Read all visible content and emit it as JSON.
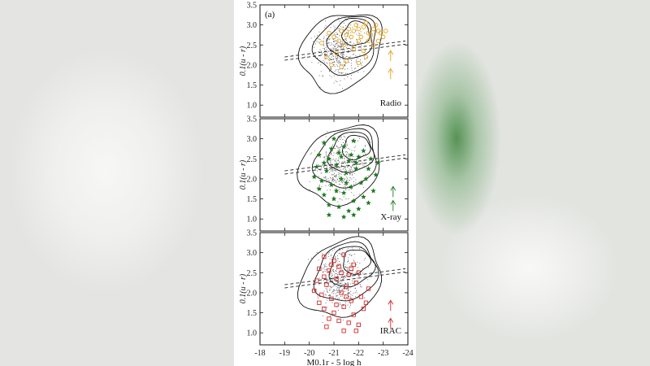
{
  "figure_label": "(a)",
  "colors": {
    "radio": "#e8a317",
    "xray": "#1e7b1e",
    "irac": "#d42a2a",
    "contour": "#111111",
    "background_points": "#555555"
  },
  "chart_data": [
    {
      "type": "scatter",
      "panel_label": "Radio",
      "ylabel": "0.1(u - r)",
      "xlim": [
        -18,
        -24
      ],
      "ylim": [
        0.7,
        3.5
      ],
      "yticks": [
        1.0,
        1.5,
        2.0,
        2.5,
        3.0,
        3.5
      ],
      "marker": "circle-open",
      "series": [
        {
          "name": "Radio",
          "color": "#e8a317",
          "marker": "circle-open",
          "points": [
            [
              -21.8,
              2.85
            ],
            [
              -22.0,
              2.9
            ],
            [
              -22.2,
              2.95
            ],
            [
              -22.4,
              2.8
            ],
            [
              -22.6,
              2.9
            ],
            [
              -22.8,
              2.85
            ],
            [
              -21.5,
              2.75
            ],
            [
              -21.7,
              2.7
            ],
            [
              -22.1,
              2.7
            ],
            [
              -22.5,
              2.75
            ],
            [
              -22.9,
              2.8
            ],
            [
              -23.0,
              2.7
            ],
            [
              -21.9,
              3.0
            ],
            [
              -22.3,
              3.05
            ],
            [
              -22.7,
              3.0
            ],
            [
              -21.6,
              2.9
            ],
            [
              -21.3,
              2.85
            ],
            [
              -22.0,
              2.6
            ],
            [
              -22.4,
              2.6
            ],
            [
              -22.8,
              2.6
            ],
            [
              -21.2,
              2.6
            ],
            [
              -21.0,
              2.7
            ],
            [
              -20.8,
              2.8
            ],
            [
              -21.4,
              2.5
            ],
            [
              -22.6,
              2.5
            ],
            [
              -20.5,
              2.55
            ],
            [
              -21.1,
              2.3
            ],
            [
              -21.8,
              2.4
            ],
            [
              -22.2,
              2.35
            ],
            [
              -20.7,
              2.2
            ],
            [
              -21.5,
              2.1
            ],
            [
              -22.0,
              2.05
            ],
            [
              -21.3,
              1.95
            ],
            [
              -20.9,
              2.0
            ],
            [
              -22.3,
              2.2
            ],
            [
              -23.1,
              2.85
            ]
          ]
        }
      ],
      "arrows": [
        [
          -23.3,
          2.3
        ],
        [
          -23.3,
          1.85
        ]
      ],
      "dividing_lines": [
        [
          [
            -19.0,
            2.2
          ],
          [
            -23.9,
            2.6
          ]
        ],
        [
          [
            -19.0,
            2.12
          ],
          [
            -23.9,
            2.52
          ]
        ]
      ]
    },
    {
      "type": "scatter",
      "panel_label": "X-ray",
      "ylabel": "0.1(u - r)",
      "xlim": [
        -18,
        -24
      ],
      "ylim": [
        0.7,
        3.5
      ],
      "yticks": [
        1.0,
        1.5,
        2.0,
        2.5,
        3.0,
        3.5
      ],
      "marker": "star",
      "series": [
        {
          "name": "X-ray",
          "color": "#1e7b1e",
          "marker": "star",
          "points": [
            [
              -20.6,
              2.9
            ],
            [
              -21.0,
              3.0
            ],
            [
              -21.4,
              2.8
            ],
            [
              -21.8,
              2.95
            ],
            [
              -22.2,
              2.7
            ],
            [
              -22.5,
              2.5
            ],
            [
              -20.4,
              2.6
            ],
            [
              -20.8,
              2.5
            ],
            [
              -21.2,
              2.65
            ],
            [
              -21.6,
              2.45
            ],
            [
              -22.0,
              2.55
            ],
            [
              -22.4,
              2.25
            ],
            [
              -20.3,
              2.3
            ],
            [
              -20.7,
              2.2
            ],
            [
              -21.1,
              2.35
            ],
            [
              -21.5,
              2.15
            ],
            [
              -21.9,
              2.25
            ],
            [
              -22.3,
              2.0
            ],
            [
              -20.5,
              1.95
            ],
            [
              -20.9,
              1.85
            ],
            [
              -21.3,
              2.0
            ],
            [
              -21.7,
              1.8
            ],
            [
              -22.1,
              1.9
            ],
            [
              -22.6,
              1.7
            ],
            [
              -20.6,
              1.6
            ],
            [
              -21.0,
              1.5
            ],
            [
              -21.4,
              1.65
            ],
            [
              -21.8,
              1.45
            ],
            [
              -22.2,
              1.55
            ],
            [
              -21.2,
              1.3
            ],
            [
              -21.6,
              1.2
            ],
            [
              -20.8,
              1.35
            ],
            [
              -22.0,
              1.25
            ],
            [
              -20.2,
              2.05
            ],
            [
              -22.7,
              2.1
            ],
            [
              -21.3,
              2.55
            ],
            [
              -20.9,
              2.75
            ],
            [
              -21.7,
              2.6
            ],
            [
              -22.8,
              2.4
            ],
            [
              -20.4,
              1.75
            ],
            [
              -21.5,
              1.9
            ],
            [
              -21.9,
              2.4
            ],
            [
              -21.1,
              1.7
            ],
            [
              -20.6,
              2.4
            ],
            [
              -22.4,
              1.4
            ],
            [
              -21.4,
              1.05
            ],
            [
              -20.8,
              1.1
            ],
            [
              -21.8,
              1.1
            ]
          ]
        }
      ],
      "arrows": [
        [
          -23.4,
          1.75
        ],
        [
          -23.4,
          1.4
        ]
      ],
      "dividing_lines": [
        [
          [
            -19.0,
            2.2
          ],
          [
            -23.9,
            2.6
          ]
        ],
        [
          [
            -19.0,
            2.12
          ],
          [
            -23.9,
            2.52
          ]
        ]
      ]
    },
    {
      "type": "scatter",
      "panel_label": "IRAC",
      "ylabel": "0.1(u - r)",
      "xlabel": "M0.1r - 5 log h",
      "xlim": [
        -18,
        -24
      ],
      "ylim": [
        0.7,
        3.5
      ],
      "xticks": [
        -18,
        -19,
        -20,
        -21,
        -22,
        -23,
        -24
      ],
      "yticks": [
        1.0,
        1.5,
        2.0,
        2.5,
        3.0,
        3.5
      ],
      "marker": "square-open",
      "series": [
        {
          "name": "IRAC",
          "color": "#d42a2a",
          "marker": "square-open",
          "points": [
            [
              -20.6,
              2.9
            ],
            [
              -21.0,
              2.8
            ],
            [
              -21.4,
              2.95
            ],
            [
              -21.8,
              2.7
            ],
            [
              -20.4,
              2.6
            ],
            [
              -20.8,
              2.55
            ],
            [
              -21.2,
              2.65
            ],
            [
              -21.6,
              2.45
            ],
            [
              -22.0,
              2.5
            ],
            [
              -20.3,
              2.3
            ],
            [
              -20.7,
              2.2
            ],
            [
              -21.1,
              2.35
            ],
            [
              -21.5,
              2.15
            ],
            [
              -21.9,
              2.25
            ],
            [
              -20.5,
              1.95
            ],
            [
              -20.9,
              1.85
            ],
            [
              -21.3,
              2.0
            ],
            [
              -21.7,
              1.8
            ],
            [
              -22.1,
              1.9
            ],
            [
              -20.6,
              1.6
            ],
            [
              -21.0,
              1.5
            ],
            [
              -21.4,
              1.65
            ],
            [
              -21.8,
              1.45
            ],
            [
              -22.2,
              1.6
            ],
            [
              -21.2,
              1.3
            ],
            [
              -21.6,
              1.25
            ],
            [
              -20.8,
              1.35
            ],
            [
              -22.0,
              1.2
            ],
            [
              -20.2,
              2.05
            ],
            [
              -22.4,
              2.1
            ],
            [
              -21.3,
              2.5
            ],
            [
              -20.9,
              2.7
            ],
            [
              -21.7,
              2.6
            ],
            [
              -20.4,
              1.75
            ],
            [
              -21.5,
              1.9
            ],
            [
              -21.1,
              1.7
            ],
            [
              -20.6,
              2.4
            ],
            [
              -22.3,
              1.75
            ],
            [
              -21.4,
              1.05
            ],
            [
              -20.7,
              1.15
            ],
            [
              -21.9,
              1.05
            ]
          ]
        }
      ],
      "arrows": [
        [
          -23.3,
          1.75
        ],
        [
          -23.3,
          1.3
        ]
      ],
      "dividing_lines": [
        [
          [
            -19.0,
            2.2
          ],
          [
            -23.9,
            2.6
          ]
        ],
        [
          [
            -19.0,
            2.12
          ],
          [
            -23.9,
            2.52
          ]
        ]
      ]
    }
  ]
}
